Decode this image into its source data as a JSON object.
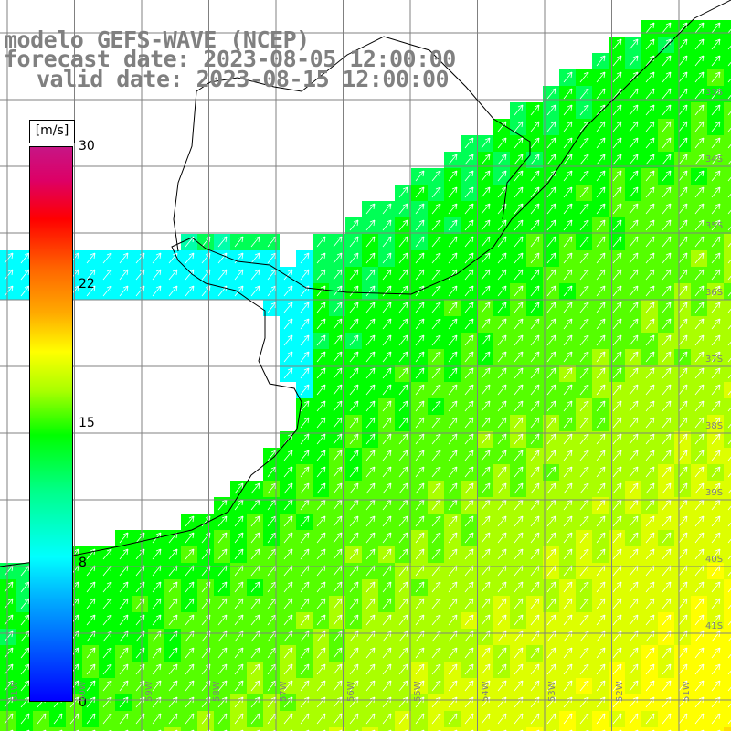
{
  "title": {
    "line1": "modelo GEFS-WAVE (NCEP)",
    "line2": "forecast date: 2023-08-05 12:00:00",
    "line3": "valid date: 2023-08-15 12:00:00"
  },
  "colorbar": {
    "unit": "[m/s]",
    "ticks": [
      "30",
      "22",
      "15",
      "8",
      "0"
    ],
    "tick_values": [
      30,
      22,
      15,
      8,
      0
    ],
    "range": [
      0,
      30
    ],
    "colors": [
      "#0000ff",
      "#00aaff",
      "#00ffff",
      "#00ff88",
      "#00ff00",
      "#aaff00",
      "#ffff00",
      "#ffaa00",
      "#ff6600",
      "#ff0000",
      "#c71585"
    ]
  },
  "map": {
    "projection": "lat-lon",
    "lon_range": [
      -61,
      -50
    ],
    "lat_range": [
      -41,
      -30
    ],
    "grid": true,
    "lon_labels": [
      "61W",
      "60W",
      "59W",
      "58W",
      "57W",
      "56W",
      "55W",
      "54W",
      "53W",
      "52W",
      "51W"
    ],
    "lat_labels": [
      "33S",
      "34S",
      "35S",
      "36S",
      "37S",
      "38S",
      "39S",
      "40S",
      "41S"
    ],
    "wind_direction": "northeast-bound arrows (southwesterly flow)",
    "field": "wind speed"
  }
}
